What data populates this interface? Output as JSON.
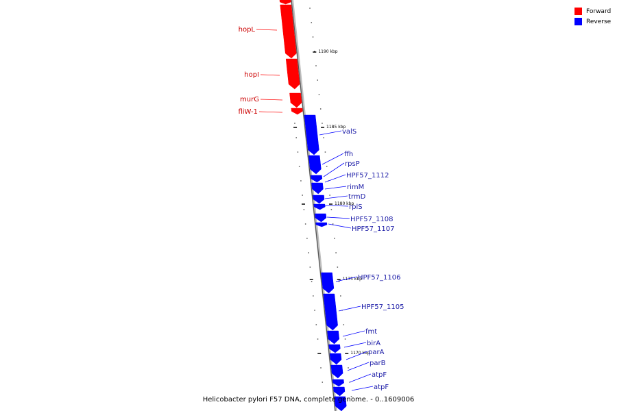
{
  "caption": "Helicobacter pylori F57 DNA, complete genome. - 0..1609006",
  "legend": [
    {
      "label": "Forward",
      "color": "#ff0000"
    },
    {
      "label": "Reverse",
      "color": "#0000ff"
    }
  ],
  "colors": {
    "forward": "#ff0000",
    "reverse": "#0000ff",
    "backbone": "#808080"
  },
  "tick_labels": [
    "1190 kbp",
    "1185 kbp",
    "1180 kbp",
    "1175 kbp",
    "1170 kbp"
  ],
  "forward_genes": [
    "hopL",
    "hopI",
    "murG",
    "fliW-1"
  ],
  "reverse_genes": [
    "valS",
    "ffh",
    "rpsP",
    "HPF57_1112",
    "rimM",
    "trmD",
    "rplS",
    "HPF57_1108",
    "HPF57_1107",
    "HPF57_1106",
    "HPF57_1105",
    "fmt",
    "birA",
    "parA",
    "parB",
    "atpF",
    "atpF"
  ]
}
